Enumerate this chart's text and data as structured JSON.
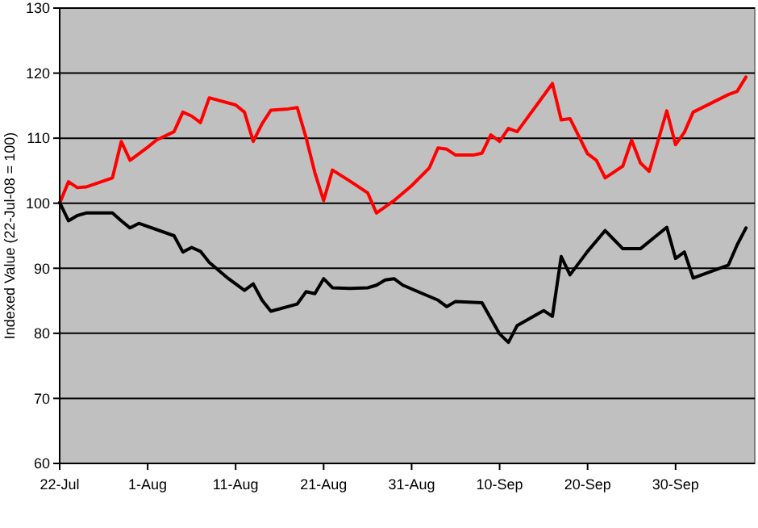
{
  "chart_data": {
    "type": "line",
    "ylabel": "Indexed Value (22-Jul-08 = 100)",
    "xlim": [
      "--07-22",
      "--10-09"
    ],
    "xticks": [
      {
        "value": "--07-22",
        "label": "22-Jul"
      },
      {
        "value": "--08-01",
        "label": "1-Aug"
      },
      {
        "value": "--08-11",
        "label": "11-Aug"
      },
      {
        "value": "--08-21",
        "label": "21-Aug"
      },
      {
        "value": "--08-31",
        "label": "31-Aug"
      },
      {
        "value": "--09-10",
        "label": "10-Sep"
      },
      {
        "value": "--09-20",
        "label": "20-Sep"
      },
      {
        "value": "--09-30",
        "label": "30-Sep"
      }
    ],
    "ylim": [
      60,
      130
    ],
    "yticks": [
      60,
      70,
      80,
      90,
      100,
      110,
      120,
      130
    ],
    "grid": "y",
    "marker": "none",
    "line_style": "solid",
    "series": [
      {
        "color": "#ff0000",
        "x": [
          "--07-22",
          "--07-23",
          "--07-24",
          "--07-25",
          "--07-28",
          "--07-29",
          "--07-30",
          "--08-01",
          "--08-02",
          "--08-04",
          "--08-05",
          "--08-06",
          "--08-07",
          "--08-08",
          "--08-11",
          "--08-12",
          "--08-13",
          "--08-14",
          "--08-15",
          "--08-17",
          "--08-18",
          "--08-19",
          "--08-20",
          "--08-21",
          "--08-22",
          "--08-24",
          "--08-26",
          "--08-27",
          "--08-29",
          "--08-31",
          "--09-02",
          "--09-03",
          "--09-04",
          "--09-05",
          "--09-07",
          "--09-08",
          "--09-09",
          "--09-10",
          "--09-11",
          "--09-12",
          "--09-16",
          "--09-17",
          "--09-18",
          "--09-20",
          "--09-21",
          "--09-22",
          "--09-24",
          "--09-25",
          "--09-26",
          "--09-27",
          "--09-29",
          "--09-30",
          "--10-01",
          "--10-02",
          "--10-06",
          "--10-07",
          "--10-08"
        ],
        "values": [
          100,
          103.3,
          102.4,
          102.5,
          103.9,
          109.5,
          106.6,
          108.6,
          109.7,
          111.0,
          114.0,
          113.4,
          112.4,
          116.2,
          115.1,
          114.0,
          109.5,
          112.2,
          114.3,
          114.5,
          114.7,
          110.1,
          104.7,
          100.4,
          105.1,
          103.4,
          101.6,
          98.5,
          100.4,
          102.7,
          105.4,
          108.5,
          108.3,
          107.4,
          107.4,
          107.7,
          110.5,
          109.5,
          111.5,
          111.0,
          118.4,
          112.8,
          113.0,
          107.6,
          106.6,
          103.9,
          105.7,
          109.7,
          106.2,
          104.9,
          114.2,
          109.0,
          110.9,
          114.0,
          116.7,
          117.2,
          119.4
        ]
      },
      {
        "color": "#000000",
        "x": [
          "--07-22",
          "--07-23",
          "--07-24",
          "--07-25",
          "--07-28",
          "--07-29",
          "--07-30",
          "--07-31",
          "--08-04",
          "--08-05",
          "--08-06",
          "--08-07",
          "--08-08",
          "--08-10",
          "--08-11",
          "--08-12",
          "--08-13",
          "--08-14",
          "--08-15",
          "--08-18",
          "--08-19",
          "--08-20",
          "--08-21",
          "--08-22",
          "--08-24",
          "--08-26",
          "--08-27",
          "--08-28",
          "--08-29",
          "--08-30",
          "--09-03",
          "--09-04",
          "--09-05",
          "--09-08",
          "--09-10",
          "--09-11",
          "--09-12",
          "--09-15",
          "--09-16",
          "--09-17",
          "--09-18",
          "--09-20",
          "--09-22",
          "--09-24",
          "--09-26",
          "--09-29",
          "--09-30",
          "--10-01",
          "--10-02",
          "--10-06",
          "--10-07",
          "--10-08"
        ],
        "values": [
          100.1,
          97.3,
          98.1,
          98.5,
          98.5,
          97.3,
          96.2,
          96.9,
          95.0,
          92.5,
          93.2,
          92.6,
          90.9,
          88.6,
          87.6,
          86.6,
          87.6,
          85.1,
          83.4,
          84.5,
          86.4,
          86.1,
          88.4,
          87.0,
          86.9,
          87.0,
          87.4,
          88.2,
          88.4,
          87.4,
          85.1,
          84.1,
          84.9,
          84.7,
          79.9,
          78.6,
          81.2,
          83.5,
          82.6,
          91.8,
          89.0,
          92.6,
          95.8,
          93.0,
          93.0,
          96.3,
          91.5,
          92.5,
          88.5,
          90.5,
          93.6,
          96.2
        ]
      }
    ]
  }
}
